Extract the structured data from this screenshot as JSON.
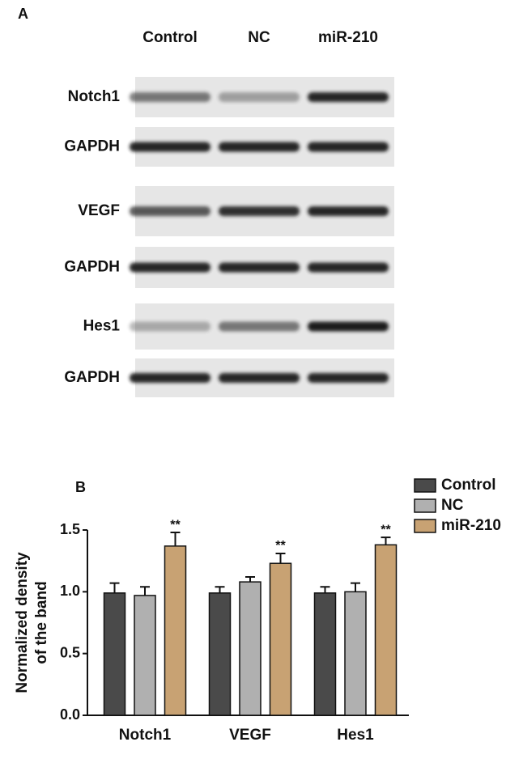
{
  "panel_a": {
    "label": "A",
    "lanes": [
      "Control",
      "NC",
      "miR-210"
    ],
    "rows": [
      "Notch1",
      "GAPDH",
      "VEGF",
      "GAPDH",
      "Hes1",
      "GAPDH"
    ]
  },
  "chart_data": {
    "type": "bar",
    "panel_label": "B",
    "y_label": [
      "Normalized density",
      "of the band"
    ],
    "categories": [
      "Notch1",
      "VEGF",
      "Hes1"
    ],
    "series": [
      {
        "name": "Control",
        "color": "#4a4a4a",
        "values": [
          0.99,
          0.99,
          0.99
        ],
        "errors": [
          0.08,
          0.05,
          0.05
        ]
      },
      {
        "name": "NC",
        "color": "#b0b0b0",
        "values": [
          0.97,
          1.08,
          1.0
        ],
        "errors": [
          0.07,
          0.04,
          0.07
        ]
      },
      {
        "name": "miR-210",
        "color": "#c8a273",
        "values": [
          1.37,
          1.23,
          1.38
        ],
        "errors": [
          0.11,
          0.08,
          0.06
        ],
        "annotations": [
          "**",
          "**",
          "**"
        ]
      }
    ],
    "ylim": [
      0,
      1.5
    ],
    "yticks": [
      {
        "value": 0,
        "label": "0.0"
      },
      {
        "value": 0.5,
        "label": "0.5"
      },
      {
        "value": 1,
        "label": "1.0"
      },
      {
        "value": 1.5,
        "label": "1.5"
      }
    ]
  }
}
